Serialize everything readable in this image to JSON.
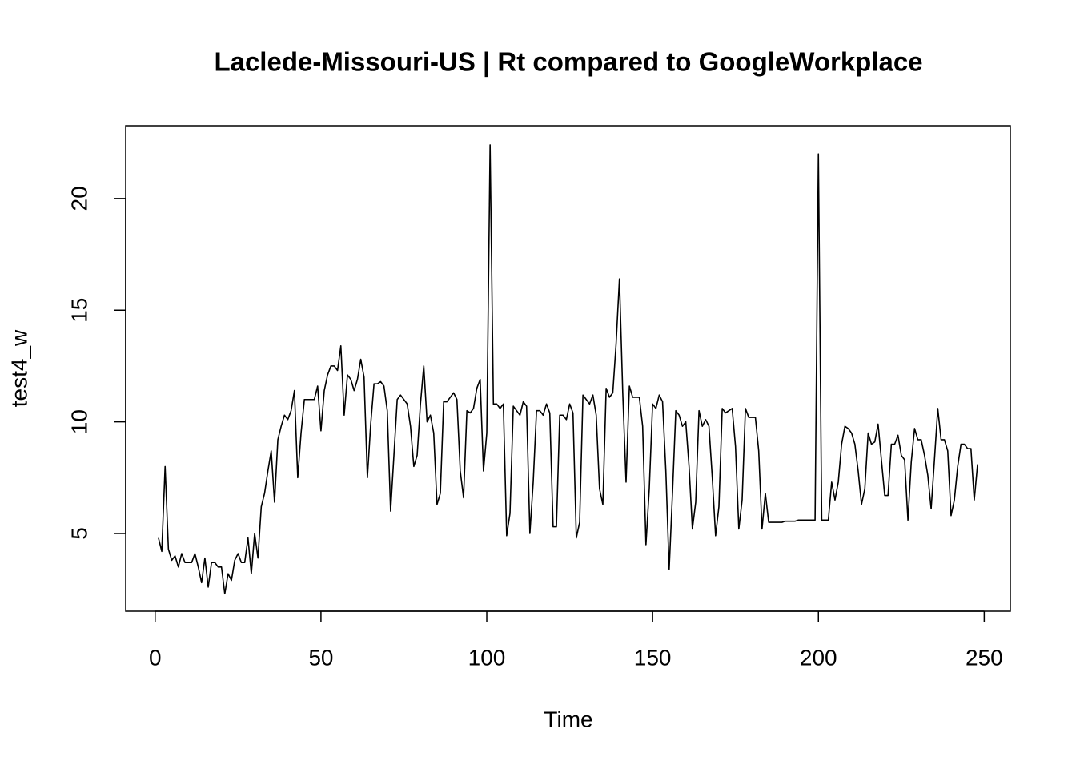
{
  "chart_data": {
    "type": "line",
    "title": "Laclede-Missouri-US | Rt compared to GoogleWorkplace",
    "xlabel": "Time",
    "ylabel": "test4_w",
    "x": [
      1,
      2,
      3,
      4,
      5,
      6,
      7,
      8,
      9,
      10,
      11,
      12,
      13,
      14,
      15,
      16,
      17,
      18,
      19,
      20,
      21,
      22,
      23,
      24,
      25,
      26,
      27,
      28,
      29,
      30,
      31,
      32,
      33,
      34,
      35,
      36,
      37,
      38,
      39,
      40,
      41,
      42,
      43,
      44,
      45,
      46,
      47,
      48,
      49,
      50,
      51,
      52,
      53,
      54,
      55,
      56,
      57,
      58,
      59,
      60,
      61,
      62,
      63,
      64,
      65,
      66,
      67,
      68,
      69,
      70,
      71,
      72,
      73,
      74,
      75,
      76,
      77,
      78,
      79,
      80,
      81,
      82,
      83,
      84,
      85,
      86,
      87,
      88,
      89,
      90,
      91,
      92,
      93,
      94,
      95,
      96,
      97,
      98,
      99,
      100,
      101,
      102,
      103,
      104,
      105,
      106,
      107,
      108,
      109,
      110,
      111,
      112,
      113,
      114,
      115,
      116,
      117,
      118,
      119,
      120,
      121,
      122,
      123,
      124,
      125,
      126,
      127,
      128,
      129,
      130,
      131,
      132,
      133,
      134,
      135,
      136,
      137,
      138,
      139,
      140,
      141,
      142,
      143,
      144,
      145,
      146,
      147,
      148,
      149,
      150,
      151,
      152,
      153,
      154,
      155,
      156,
      157,
      158,
      159,
      160,
      161,
      162,
      163,
      164,
      165,
      166,
      167,
      168,
      169,
      170,
      171,
      172,
      173,
      174,
      175,
      176,
      177,
      178,
      179,
      180,
      181,
      182,
      183,
      184,
      185,
      186,
      187,
      188,
      189,
      190,
      191,
      192,
      193,
      194,
      195,
      196,
      197,
      198,
      199,
      200,
      201,
      202,
      203,
      204,
      205,
      206,
      207,
      208,
      209,
      210,
      211,
      212,
      213,
      214,
      215,
      216,
      217,
      218,
      219,
      220,
      221,
      222,
      223,
      224,
      225,
      226,
      227,
      228,
      229,
      230,
      231,
      232,
      233,
      234,
      235,
      236,
      237,
      238,
      239,
      240,
      241,
      242,
      243,
      244,
      245,
      246,
      247,
      248
    ],
    "values": [
      4.8,
      4.2,
      8.0,
      4.3,
      3.8,
      4.0,
      3.5,
      4.1,
      3.7,
      3.7,
      3.7,
      4.1,
      3.5,
      2.8,
      3.9,
      2.6,
      3.7,
      3.7,
      3.5,
      3.5,
      2.3,
      3.2,
      2.9,
      3.8,
      4.1,
      3.7,
      3.7,
      4.8,
      3.2,
      5.0,
      3.9,
      6.2,
      6.8,
      7.8,
      8.7,
      6.4,
      9.2,
      9.8,
      10.3,
      10.1,
      10.5,
      11.4,
      7.5,
      9.5,
      11.0,
      11.0,
      11.0,
      11.0,
      11.6,
      9.6,
      11.4,
      12.1,
      12.5,
      12.5,
      12.3,
      13.4,
      10.3,
      12.1,
      11.9,
      11.4,
      11.9,
      12.8,
      12.0,
      7.5,
      9.9,
      11.7,
      11.7,
      11.8,
      11.6,
      10.5,
      6.0,
      8.5,
      11.0,
      11.2,
      11.0,
      10.8,
      9.8,
      8.0,
      8.5,
      10.8,
      12.5,
      10.0,
      10.3,
      9.5,
      6.3,
      6.8,
      10.9,
      10.9,
      11.1,
      11.3,
      11.0,
      7.8,
      6.6,
      10.5,
      10.4,
      10.6,
      11.5,
      11.9,
      7.8,
      9.5,
      22.4,
      10.8,
      10.8,
      10.6,
      10.8,
      4.9,
      5.9,
      10.7,
      10.5,
      10.3,
      10.9,
      10.7,
      5.0,
      7.3,
      10.5,
      10.5,
      10.3,
      10.8,
      10.4,
      5.3,
      5.3,
      10.3,
      10.3,
      10.1,
      10.8,
      10.4,
      4.8,
      5.5,
      11.2,
      11.0,
      10.8,
      11.2,
      10.3,
      7.0,
      6.3,
      11.5,
      11.1,
      11.3,
      13.5,
      16.4,
      11.3,
      7.3,
      11.6,
      11.1,
      11.1,
      11.1,
      9.8,
      4.5,
      7.0,
      10.8,
      10.6,
      11.2,
      10.9,
      7.8,
      3.4,
      6.8,
      10.5,
      10.3,
      9.8,
      10.0,
      8.0,
      5.2,
      6.4,
      10.5,
      9.8,
      10.1,
      9.8,
      7.5,
      4.9,
      6.2,
      10.6,
      10.4,
      10.5,
      10.6,
      8.9,
      5.2,
      6.5,
      10.6,
      10.2,
      10.2,
      10.2,
      8.7,
      5.2,
      6.8,
      5.5,
      5.5,
      5.5,
      5.5,
      5.5,
      5.55,
      5.55,
      5.55,
      5.55,
      5.6,
      5.6,
      5.6,
      5.6,
      5.6,
      5.6,
      22.0,
      5.6,
      5.6,
      5.6,
      7.3,
      6.5,
      7.3,
      9.0,
      9.8,
      9.7,
      9.5,
      9.0,
      7.8,
      6.3,
      7.0,
      9.5,
      9.0,
      9.1,
      9.9,
      8.3,
      6.7,
      6.7,
      9.0,
      9.0,
      9.4,
      8.5,
      8.3,
      5.6,
      8.2,
      9.7,
      9.2,
      9.2,
      8.5,
      7.6,
      6.1,
      8.3,
      10.6,
      9.2,
      9.2,
      8.7,
      5.8,
      6.5,
      8.0,
      9.0,
      9.0,
      8.8,
      8.8,
      6.5,
      8.1
    ],
    "color": "#000000",
    "xlim": [
      -8.88,
      257.88
    ],
    "xticks": [
      0,
      50,
      100,
      150,
      200,
      250
    ],
    "ylim": [
      1.52,
      23.26
    ],
    "yticks": [
      5,
      10,
      15,
      20
    ]
  }
}
